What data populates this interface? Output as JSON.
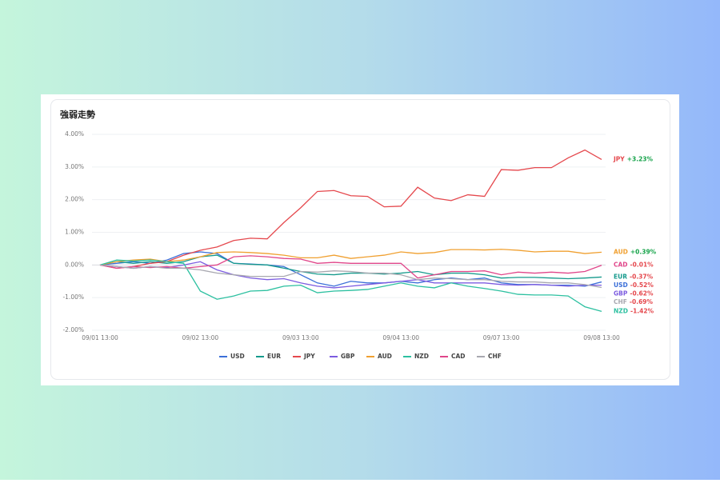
{
  "chart_data": {
    "type": "line",
    "title": "強弱走勢",
    "categories": [
      "09/01 13:00",
      null,
      null,
      null,
      null,
      null,
      "09/02 13:00",
      null,
      null,
      null,
      null,
      null,
      "09/03 13:00",
      null,
      null,
      null,
      null,
      null,
      "09/04 13:00",
      null,
      null,
      null,
      null,
      null,
      "09/07 13:00",
      null,
      null,
      null,
      null,
      null,
      "09/08 13:00"
    ],
    "ylim": [
      -2,
      4
    ],
    "yticks": [
      {
        "value": 4,
        "label": "4.00%"
      },
      {
        "value": 3,
        "label": "3.00%"
      },
      {
        "value": 2,
        "label": "2.00%"
      },
      {
        "value": 1,
        "label": "1.00%"
      },
      {
        "value": 0,
        "label": "0.00%"
      },
      {
        "value": -1,
        "label": "-1.00%"
      },
      {
        "value": -2,
        "label": "-2.00%"
      }
    ],
    "grid": true,
    "legend": "bottom",
    "series": [
      {
        "name": "USD",
        "color": "#3b6fd8",
        "values": [
          0,
          0.05,
          0.1,
          0.05,
          0.15,
          0.35,
          0.4,
          0.35,
          0.05,
          0.03,
          0.0,
          -0.05,
          -0.3,
          -0.55,
          -0.65,
          -0.5,
          -0.55,
          -0.55,
          -0.5,
          -0.55,
          -0.45,
          -0.4,
          -0.45,
          -0.4,
          -0.55,
          -0.6,
          -0.6,
          -0.62,
          -0.62,
          -0.65,
          -0.52
        ],
        "value_labels": [
          null,
          null,
          null,
          null,
          null,
          null,
          null,
          null,
          null,
          null,
          null,
          null,
          null,
          null,
          null,
          null,
          null,
          null,
          null,
          null,
          null,
          null,
          null,
          null,
          null,
          null,
          null,
          null,
          null,
          null,
          "-0.52%"
        ]
      },
      {
        "name": "EUR",
        "color": "#159a8c",
        "values": [
          0,
          0.1,
          0.05,
          0.1,
          0.05,
          0.1,
          0.25,
          0.3,
          0.05,
          0.02,
          0.0,
          -0.1,
          -0.2,
          -0.28,
          -0.3,
          -0.25,
          -0.25,
          -0.28,
          -0.25,
          -0.2,
          -0.3,
          -0.25,
          -0.25,
          -0.3,
          -0.4,
          -0.38,
          -0.38,
          -0.4,
          -0.42,
          -0.4,
          -0.37
        ],
        "value_labels": [
          null,
          null,
          null,
          null,
          null,
          null,
          null,
          null,
          null,
          null,
          null,
          null,
          null,
          null,
          null,
          null,
          null,
          null,
          null,
          null,
          null,
          null,
          null,
          null,
          null,
          null,
          null,
          null,
          null,
          null,
          "-0.37%"
        ]
      },
      {
        "name": "JPY",
        "color": "#e5484d",
        "values": [
          0,
          -0.1,
          -0.05,
          0.05,
          0.1,
          0.3,
          0.45,
          0.55,
          0.75,
          0.82,
          0.8,
          1.3,
          1.75,
          2.25,
          2.28,
          2.12,
          2.1,
          1.78,
          1.8,
          2.38,
          2.05,
          1.97,
          2.15,
          2.1,
          2.92,
          2.9,
          2.98,
          2.98,
          3.28,
          3.52,
          3.23
        ],
        "value_labels": [
          null,
          null,
          null,
          null,
          null,
          null,
          null,
          null,
          null,
          null,
          null,
          null,
          null,
          null,
          null,
          null,
          null,
          null,
          null,
          null,
          null,
          null,
          null,
          null,
          null,
          null,
          null,
          null,
          null,
          null,
          "+3.23%"
        ]
      },
      {
        "name": "GBP",
        "color": "#7c5ce0",
        "values": [
          0,
          -0.05,
          -0.1,
          -0.05,
          -0.08,
          0.0,
          0.1,
          -0.15,
          -0.3,
          -0.4,
          -0.45,
          -0.42,
          -0.55,
          -0.65,
          -0.7,
          -0.65,
          -0.6,
          -0.55,
          -0.5,
          -0.45,
          -0.55,
          -0.55,
          -0.55,
          -0.55,
          -0.6,
          -0.62,
          -0.6,
          -0.62,
          -0.65,
          -0.62,
          -0.62
        ],
        "value_labels": [
          null,
          null,
          null,
          null,
          null,
          null,
          null,
          null,
          null,
          null,
          null,
          null,
          null,
          null,
          null,
          null,
          null,
          null,
          null,
          null,
          null,
          null,
          null,
          null,
          null,
          null,
          null,
          null,
          null,
          null,
          "-0.62%"
        ]
      },
      {
        "name": "AUD",
        "color": "#f0a030",
        "values": [
          0,
          0.1,
          0.15,
          0.18,
          0.1,
          0.15,
          0.25,
          0.38,
          0.4,
          0.38,
          0.35,
          0.3,
          0.22,
          0.22,
          0.3,
          0.2,
          0.25,
          0.3,
          0.4,
          0.35,
          0.38,
          0.47,
          0.47,
          0.46,
          0.48,
          0.45,
          0.4,
          0.42,
          0.42,
          0.35,
          0.39
        ],
        "value_labels": [
          null,
          null,
          null,
          null,
          null,
          null,
          null,
          null,
          null,
          null,
          null,
          null,
          null,
          null,
          null,
          null,
          null,
          null,
          null,
          null,
          null,
          null,
          null,
          null,
          null,
          null,
          null,
          null,
          null,
          null,
          "+0.39%"
        ]
      },
      {
        "name": "NZD",
        "color": "#2cc0a0",
        "values": [
          0,
          0.15,
          0.12,
          0.15,
          0.1,
          0.05,
          -0.8,
          -1.05,
          -0.95,
          -0.8,
          -0.78,
          -0.65,
          -0.62,
          -0.85,
          -0.8,
          -0.78,
          -0.75,
          -0.65,
          -0.55,
          -0.65,
          -0.7,
          -0.55,
          -0.65,
          -0.72,
          -0.8,
          -0.9,
          -0.92,
          -0.92,
          -0.95,
          -1.28,
          -1.42
        ],
        "value_labels": [
          null,
          null,
          null,
          null,
          null,
          null,
          null,
          null,
          null,
          null,
          null,
          null,
          null,
          null,
          null,
          null,
          null,
          null,
          null,
          null,
          null,
          null,
          null,
          null,
          null,
          null,
          null,
          null,
          null,
          null,
          "-1.42%"
        ]
      },
      {
        "name": "CAD",
        "color": "#e0468a",
        "values": [
          0,
          -0.1,
          -0.05,
          -0.08,
          -0.05,
          -0.1,
          -0.05,
          0.0,
          0.25,
          0.28,
          0.25,
          0.2,
          0.18,
          0.05,
          0.08,
          0.05,
          0.05,
          0.05,
          0.05,
          -0.4,
          -0.3,
          -0.2,
          -0.2,
          -0.18,
          -0.3,
          -0.22,
          -0.25,
          -0.22,
          -0.25,
          -0.2,
          -0.01
        ],
        "value_labels": [
          null,
          null,
          null,
          null,
          null,
          null,
          null,
          null,
          null,
          null,
          null,
          null,
          null,
          null,
          null,
          null,
          null,
          null,
          null,
          null,
          null,
          null,
          null,
          null,
          null,
          null,
          null,
          null,
          null,
          null,
          "-0.01%"
        ]
      },
      {
        "name": "CHF",
        "color": "#a8a8b0",
        "values": [
          0,
          -0.05,
          -0.1,
          -0.05,
          -0.1,
          -0.1,
          -0.15,
          -0.25,
          -0.3,
          -0.35,
          -0.35,
          -0.35,
          -0.2,
          -0.22,
          -0.18,
          -0.2,
          -0.25,
          -0.25,
          -0.3,
          -0.45,
          -0.4,
          -0.42,
          -0.45,
          -0.45,
          -0.5,
          -0.52,
          -0.52,
          -0.55,
          -0.55,
          -0.6,
          -0.69
        ],
        "value_labels": [
          null,
          null,
          null,
          null,
          null,
          null,
          null,
          null,
          null,
          null,
          null,
          null,
          null,
          null,
          null,
          null,
          null,
          null,
          null,
          null,
          null,
          null,
          null,
          null,
          null,
          null,
          null,
          null,
          null,
          null,
          "-0.69%"
        ]
      }
    ]
  }
}
